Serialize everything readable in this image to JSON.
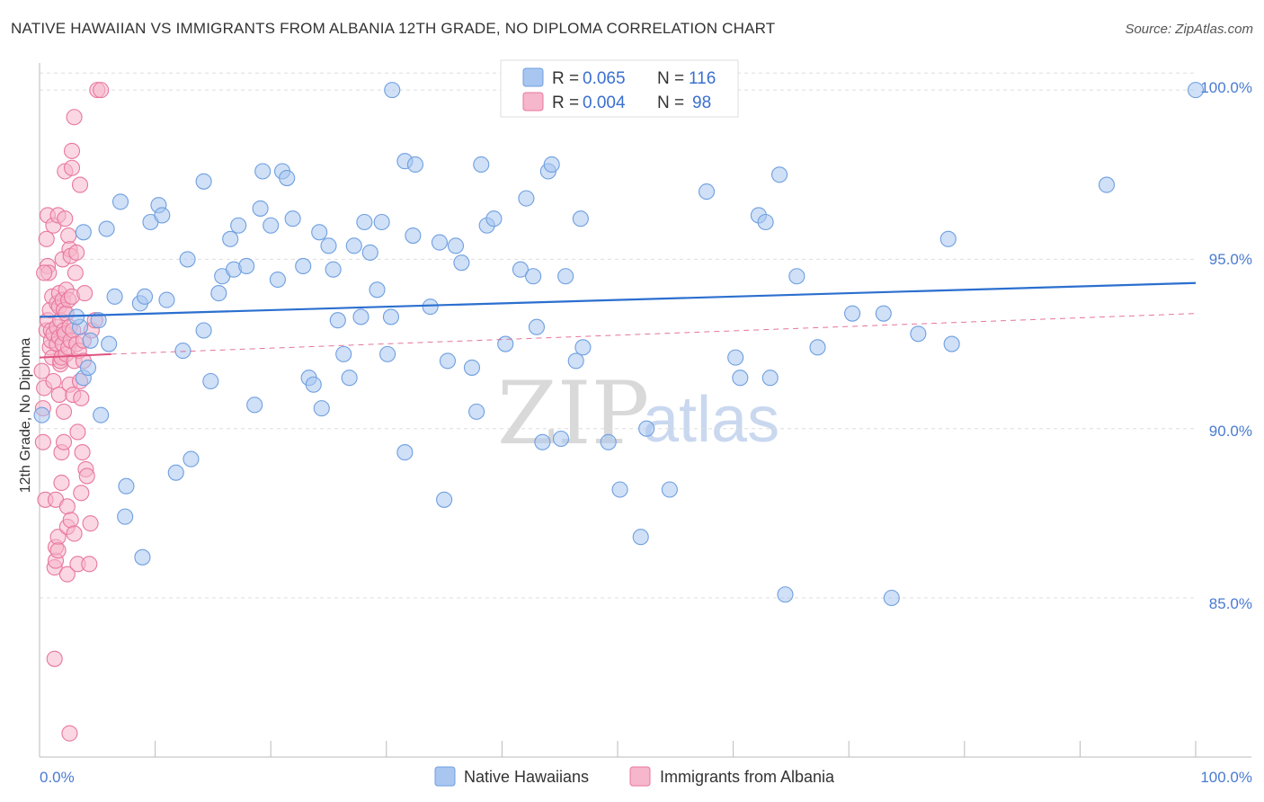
{
  "header": {
    "title": "NATIVE HAWAIIAN VS IMMIGRANTS FROM ALBANIA 12TH GRADE, NO DIPLOMA CORRELATION CHART",
    "source": "Source: ZipAtlas.com"
  },
  "watermark": {
    "zip": "ZIP",
    "atlas": "atlas"
  },
  "legend_top": {
    "rows": [
      {
        "r_label": "R =",
        "r_value": "0.065",
        "n_label": "N =",
        "n_value": "116"
      },
      {
        "r_label": "R =",
        "r_value": "0.004",
        "n_label": "N =",
        "n_value": "98"
      }
    ]
  },
  "legend_bottom": {
    "items": [
      {
        "label": "Native Hawaiians"
      },
      {
        "label": "Immigrants from Albania"
      }
    ]
  },
  "colors": {
    "blue_fill": "#a8c6f0",
    "blue_stroke": "#6f9fe0",
    "blue_line": "#2b6fcf",
    "pink_fill": "#f6b6cb",
    "pink_stroke": "#e8779f",
    "pink_line": "#e0527f",
    "grid": "#dddddd",
    "axis_text": "#4a7bd0"
  },
  "chart_data": {
    "type": "scatter",
    "xlabel": "",
    "ylabel": "12th Grade, No Diploma",
    "xlim": [
      0,
      100
    ],
    "ylim": [
      80.3,
      100.8
    ],
    "x_tick_labels": [
      "0.0%",
      "100.0%"
    ],
    "y_ticks": [
      85,
      90,
      95,
      100
    ],
    "y_tick_labels": [
      "85.0%",
      "90.0%",
      "95.0%",
      "100.0%"
    ],
    "grid": true,
    "legend_position": "top-center",
    "series": [
      {
        "name": "Native Hawaiians",
        "color": "#a8c6f0",
        "trend": [
          [
            0,
            93.3
          ],
          [
            100,
            94.3
          ]
        ],
        "points": [
          [
            0.2,
            90.4
          ],
          [
            3.5,
            93.0
          ],
          [
            3.8,
            91.5
          ],
          [
            3.2,
            93.3
          ],
          [
            4.2,
            91.8
          ],
          [
            4.4,
            92.6
          ],
          [
            3.8,
            95.8
          ],
          [
            5.3,
            90.4
          ],
          [
            5.8,
            95.9
          ],
          [
            6.5,
            93.9
          ],
          [
            7.0,
            96.7
          ],
          [
            7.5,
            88.3
          ],
          [
            7.4,
            87.4
          ],
          [
            8.7,
            93.7
          ],
          [
            8.9,
            86.2
          ],
          [
            9.1,
            93.9
          ],
          [
            9.6,
            96.1
          ],
          [
            10.3,
            96.6
          ],
          [
            10.6,
            96.3
          ],
          [
            11.0,
            93.8
          ],
          [
            11.8,
            88.7
          ],
          [
            12.4,
            92.3
          ],
          [
            12.8,
            95.0
          ],
          [
            13.1,
            89.1
          ],
          [
            14.2,
            92.9
          ],
          [
            14.2,
            97.3
          ],
          [
            14.8,
            91.4
          ],
          [
            15.5,
            94.0
          ],
          [
            15.8,
            94.5
          ],
          [
            16.5,
            95.6
          ],
          [
            16.8,
            94.7
          ],
          [
            17.2,
            96.0
          ],
          [
            17.9,
            94.8
          ],
          [
            18.6,
            90.7
          ],
          [
            19.1,
            96.5
          ],
          [
            19.3,
            97.6
          ],
          [
            20.0,
            96.0
          ],
          [
            20.6,
            94.4
          ],
          [
            21.0,
            97.6
          ],
          [
            21.4,
            97.4
          ],
          [
            21.9,
            96.2
          ],
          [
            22.8,
            94.8
          ],
          [
            23.3,
            91.5
          ],
          [
            23.7,
            91.3
          ],
          [
            24.2,
            95.8
          ],
          [
            24.4,
            90.6
          ],
          [
            25.0,
            95.4
          ],
          [
            25.4,
            94.7
          ],
          [
            25.8,
            93.2
          ],
          [
            26.3,
            92.2
          ],
          [
            26.8,
            91.5
          ],
          [
            27.2,
            95.4
          ],
          [
            27.8,
            93.3
          ],
          [
            28.1,
            96.1
          ],
          [
            28.6,
            95.2
          ],
          [
            29.2,
            94.1
          ],
          [
            29.6,
            96.1
          ],
          [
            30.1,
            92.2
          ],
          [
            30.4,
            93.3
          ],
          [
            31.6,
            89.3
          ],
          [
            31.6,
            97.9
          ],
          [
            32.5,
            97.8
          ],
          [
            32.3,
            95.7
          ],
          [
            33.8,
            93.6
          ],
          [
            34.6,
            95.5
          ],
          [
            35.0,
            87.9
          ],
          [
            35.3,
            92.0
          ],
          [
            36.0,
            95.4
          ],
          [
            36.5,
            94.9
          ],
          [
            37.4,
            91.8
          ],
          [
            37.8,
            90.5
          ],
          [
            38.2,
            97.8
          ],
          [
            38.7,
            96.0
          ],
          [
            39.3,
            96.2
          ],
          [
            40.3,
            92.5
          ],
          [
            41.6,
            94.7
          ],
          [
            42.1,
            96.8
          ],
          [
            42.7,
            94.5
          ],
          [
            43.0,
            93.0
          ],
          [
            43.5,
            89.6
          ],
          [
            44.0,
            97.6
          ],
          [
            44.3,
            97.8
          ],
          [
            45.1,
            89.7
          ],
          [
            45.5,
            94.5
          ],
          [
            46.4,
            92.0
          ],
          [
            46.8,
            96.2
          ],
          [
            47.0,
            92.4
          ],
          [
            49.2,
            89.6
          ],
          [
            50.2,
            88.2
          ],
          [
            52.0,
            86.8
          ],
          [
            52.5,
            90.0
          ],
          [
            54.5,
            88.2
          ],
          [
            57.7,
            97.0
          ],
          [
            57.2,
            100.0
          ],
          [
            59.4,
            100.0
          ],
          [
            60.2,
            92.1
          ],
          [
            60.6,
            91.5
          ],
          [
            62.2,
            96.3
          ],
          [
            62.8,
            96.1
          ],
          [
            63.2,
            91.5
          ],
          [
            64.0,
            97.5
          ],
          [
            64.5,
            85.1
          ],
          [
            65.5,
            94.5
          ],
          [
            67.3,
            92.4
          ],
          [
            70.3,
            93.4
          ],
          [
            73.0,
            93.4
          ],
          [
            73.7,
            85.0
          ],
          [
            76.0,
            92.8
          ],
          [
            78.6,
            95.6
          ],
          [
            78.9,
            92.5
          ],
          [
            92.3,
            97.2
          ],
          [
            100.0,
            100.0
          ],
          [
            30.5,
            100.0
          ],
          [
            43.6,
            100.0
          ],
          [
            59.0,
            100.0
          ],
          [
            5.1,
            93.2
          ],
          [
            6.0,
            92.5
          ]
        ]
      },
      {
        "name": "Immigrants from Albania",
        "color": "#f6b6cb",
        "trend_solid": [
          [
            0,
            92.1
          ],
          [
            6.2,
            92.2
          ]
        ],
        "trend_dashed": [
          [
            6.2,
            92.2
          ],
          [
            100,
            93.4
          ]
        ],
        "points": [
          [
            0.2,
            91.7
          ],
          [
            0.3,
            90.6
          ],
          [
            0.3,
            89.6
          ],
          [
            0.4,
            91.2
          ],
          [
            0.5,
            87.9
          ],
          [
            0.6,
            92.9
          ],
          [
            0.7,
            93.2
          ],
          [
            0.6,
            95.6
          ],
          [
            0.7,
            96.3
          ],
          [
            0.7,
            94.8
          ],
          [
            0.8,
            94.6
          ],
          [
            0.9,
            93.5
          ],
          [
            0.9,
            92.4
          ],
          [
            1.0,
            92.9
          ],
          [
            1.0,
            92.6
          ],
          [
            1.1,
            93.9
          ],
          [
            1.1,
            92.1
          ],
          [
            1.2,
            91.4
          ],
          [
            1.2,
            92.8
          ],
          [
            1.2,
            96.0
          ],
          [
            1.3,
            85.9
          ],
          [
            1.3,
            83.2
          ],
          [
            1.4,
            87.9
          ],
          [
            1.4,
            86.1
          ],
          [
            1.4,
            86.5
          ],
          [
            1.5,
            93.0
          ],
          [
            1.5,
            93.7
          ],
          [
            1.5,
            92.5
          ],
          [
            1.6,
            96.3
          ],
          [
            1.6,
            86.8
          ],
          [
            1.6,
            86.4
          ],
          [
            1.7,
            93.6
          ],
          [
            1.7,
            94.0
          ],
          [
            1.7,
            92.7
          ],
          [
            1.7,
            91.0
          ],
          [
            1.8,
            91.9
          ],
          [
            1.8,
            92.0
          ],
          [
            1.8,
            93.2
          ],
          [
            1.9,
            92.1
          ],
          [
            1.9,
            88.4
          ],
          [
            1.9,
            89.3
          ],
          [
            2.0,
            95.0
          ],
          [
            2.0,
            92.5
          ],
          [
            2.0,
            93.8
          ],
          [
            2.1,
            92.9
          ],
          [
            2.1,
            93.5
          ],
          [
            2.1,
            90.5
          ],
          [
            2.1,
            89.6
          ],
          [
            2.2,
            92.8
          ],
          [
            2.2,
            97.6
          ],
          [
            2.2,
            96.2
          ],
          [
            2.3,
            94.1
          ],
          [
            2.3,
            93.4
          ],
          [
            2.3,
            92.2
          ],
          [
            2.4,
            87.7
          ],
          [
            2.4,
            87.1
          ],
          [
            2.4,
            85.7
          ],
          [
            2.5,
            93.8
          ],
          [
            2.5,
            92.4
          ],
          [
            2.5,
            95.7
          ],
          [
            2.6,
            93.0
          ],
          [
            2.6,
            95.3
          ],
          [
            2.6,
            91.3
          ],
          [
            2.6,
            81.0
          ],
          [
            2.7,
            92.6
          ],
          [
            2.7,
            95.1
          ],
          [
            2.7,
            87.3
          ],
          [
            2.8,
            98.2
          ],
          [
            2.8,
            97.7
          ],
          [
            2.8,
            93.9
          ],
          [
            2.9,
            92.9
          ],
          [
            2.9,
            91.0
          ],
          [
            3.0,
            99.2
          ],
          [
            3.0,
            92.0
          ],
          [
            3.0,
            86.9
          ],
          [
            3.1,
            94.6
          ],
          [
            3.2,
            95.2
          ],
          [
            3.2,
            92.5
          ],
          [
            3.3,
            89.9
          ],
          [
            3.3,
            86.0
          ],
          [
            3.4,
            92.3
          ],
          [
            3.5,
            97.2
          ],
          [
            3.5,
            91.4
          ],
          [
            3.6,
            90.9
          ],
          [
            3.6,
            88.1
          ],
          [
            3.7,
            89.3
          ],
          [
            3.8,
            92.6
          ],
          [
            3.8,
            92.0
          ],
          [
            3.9,
            94.0
          ],
          [
            4.0,
            88.8
          ],
          [
            4.1,
            88.6
          ],
          [
            4.3,
            86.0
          ],
          [
            4.4,
            87.2
          ],
          [
            4.5,
            92.9
          ],
          [
            4.8,
            93.2
          ],
          [
            5.0,
            100.0
          ],
          [
            5.3,
            100.0
          ],
          [
            0.4,
            94.6
          ]
        ]
      }
    ]
  }
}
